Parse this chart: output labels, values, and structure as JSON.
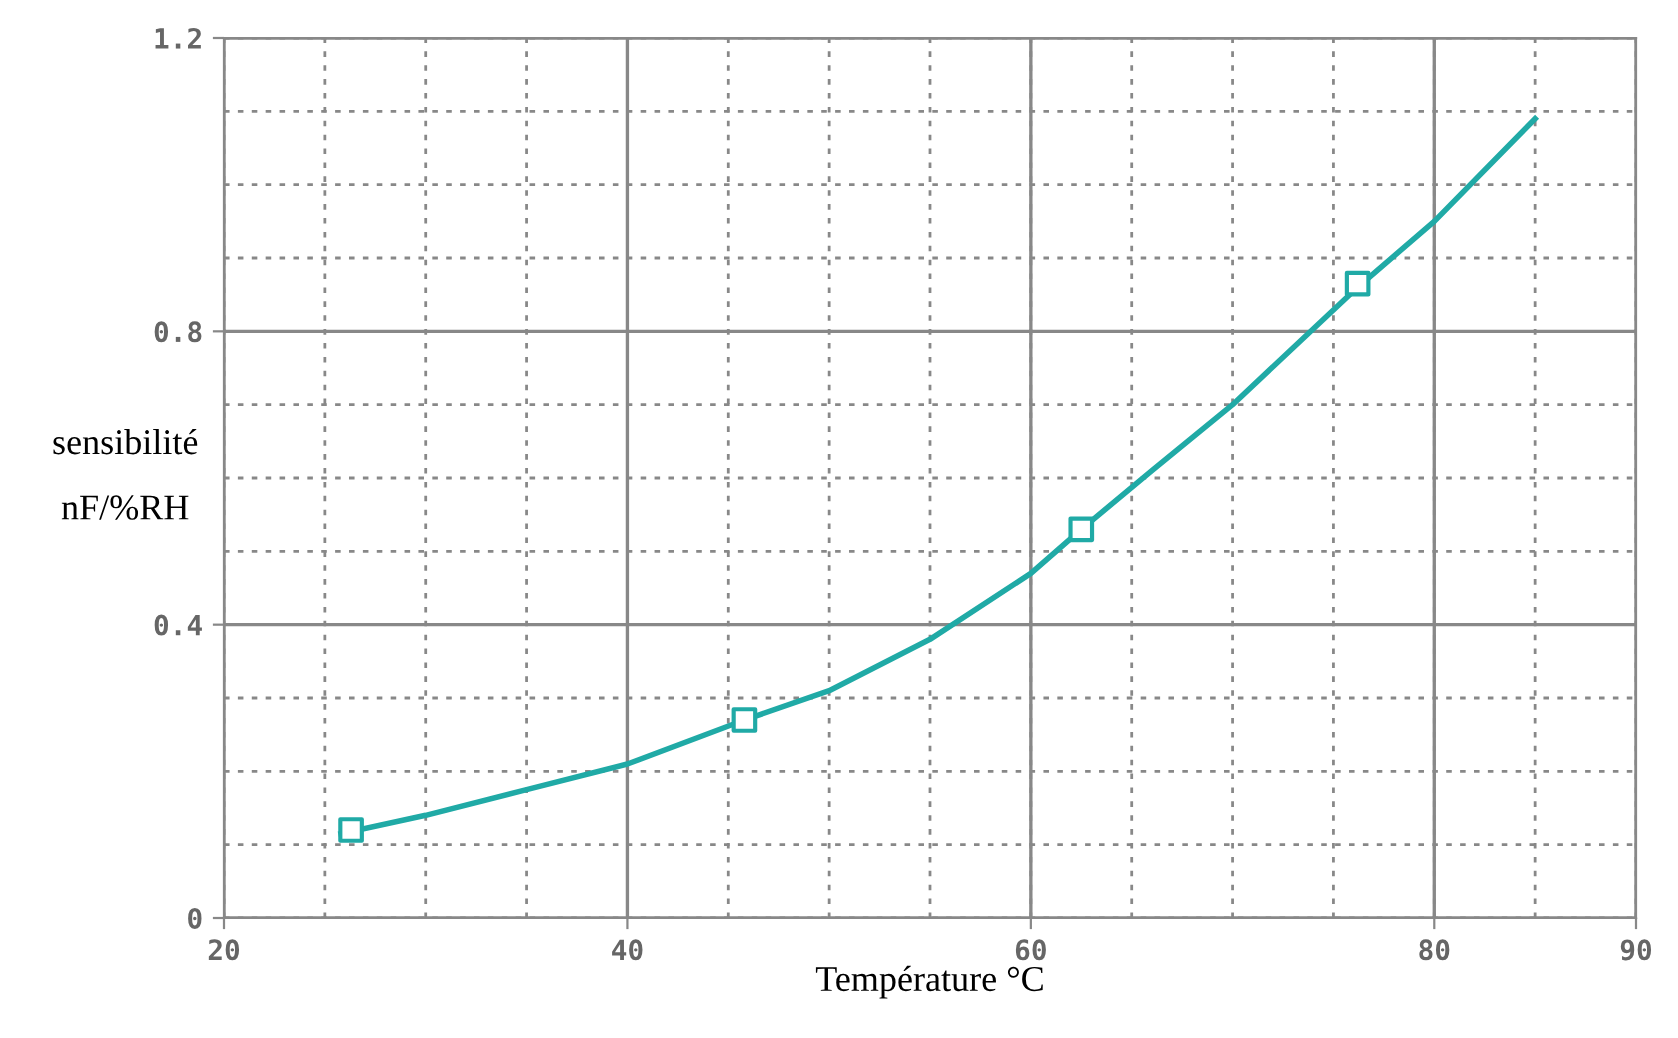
{
  "chart_data": {
    "type": "line",
    "xlabel": "Température °C",
    "ylabel": "sensibilité\nnF/%RH",
    "xlim": [
      20,
      90
    ],
    "ylim": [
      0,
      1.2
    ],
    "xticks": [
      20,
      40,
      60,
      80,
      90
    ],
    "yticks": [
      0,
      0.4,
      0.8,
      1.2
    ],
    "grid": true,
    "series": [
      {
        "color": "#20aaa6",
        "marker": "none",
        "x": [
          25.8,
          30,
          35,
          40,
          45.8,
          50,
          55,
          60,
          62.5,
          66,
          70,
          76.2,
          80,
          85
        ],
        "values": [
          0.115,
          0.14,
          0.175,
          0.21,
          0.27,
          0.31,
          0.38,
          0.47,
          0.53,
          0.61,
          0.7,
          0.86,
          0.95,
          1.09
        ]
      },
      {
        "type": "scatter",
        "color": "#20aaa6",
        "marker": "square",
        "x": [
          26.3,
          45.8,
          62.5,
          76.2
        ],
        "values": [
          0.12,
          0.27,
          0.53,
          0.865
        ]
      }
    ]
  }
}
